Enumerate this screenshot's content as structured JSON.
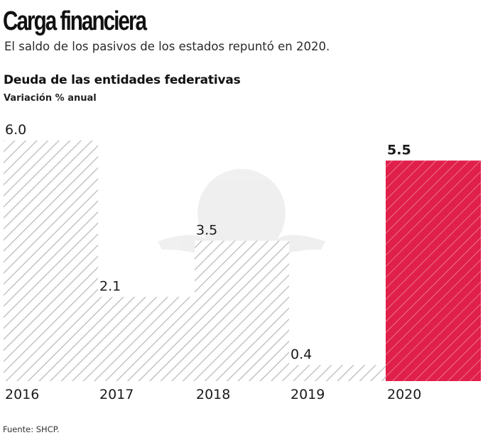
{
  "header": {
    "title": "Carga financiera",
    "subtitle": "El saldo de los pasivos de los estados repuntó en 2020."
  },
  "footer": {
    "source": "Fuente: SHCP."
  },
  "colors": {
    "hatch_gray": "#c4c4c4",
    "highlight_red": "#e0204a",
    "highlight_hatch": "#f08aa0",
    "text": "#1a1a1a"
  },
  "chart_data": {
    "type": "bar",
    "title": "Deuda de las entidades federativas",
    "subtitle": "Variación % anual",
    "xlabel": "",
    "ylabel": "",
    "categories": [
      "2016",
      "2017",
      "2018",
      "2019",
      "2020"
    ],
    "values": [
      6.0,
      2.1,
      3.5,
      0.4,
      5.5
    ],
    "value_labels": [
      "6.0",
      "2.1",
      "3.5",
      "0.4",
      "5.5"
    ],
    "highlight": "2020",
    "ylim": [
      0,
      6.0
    ],
    "grid": false,
    "legend": "none"
  }
}
